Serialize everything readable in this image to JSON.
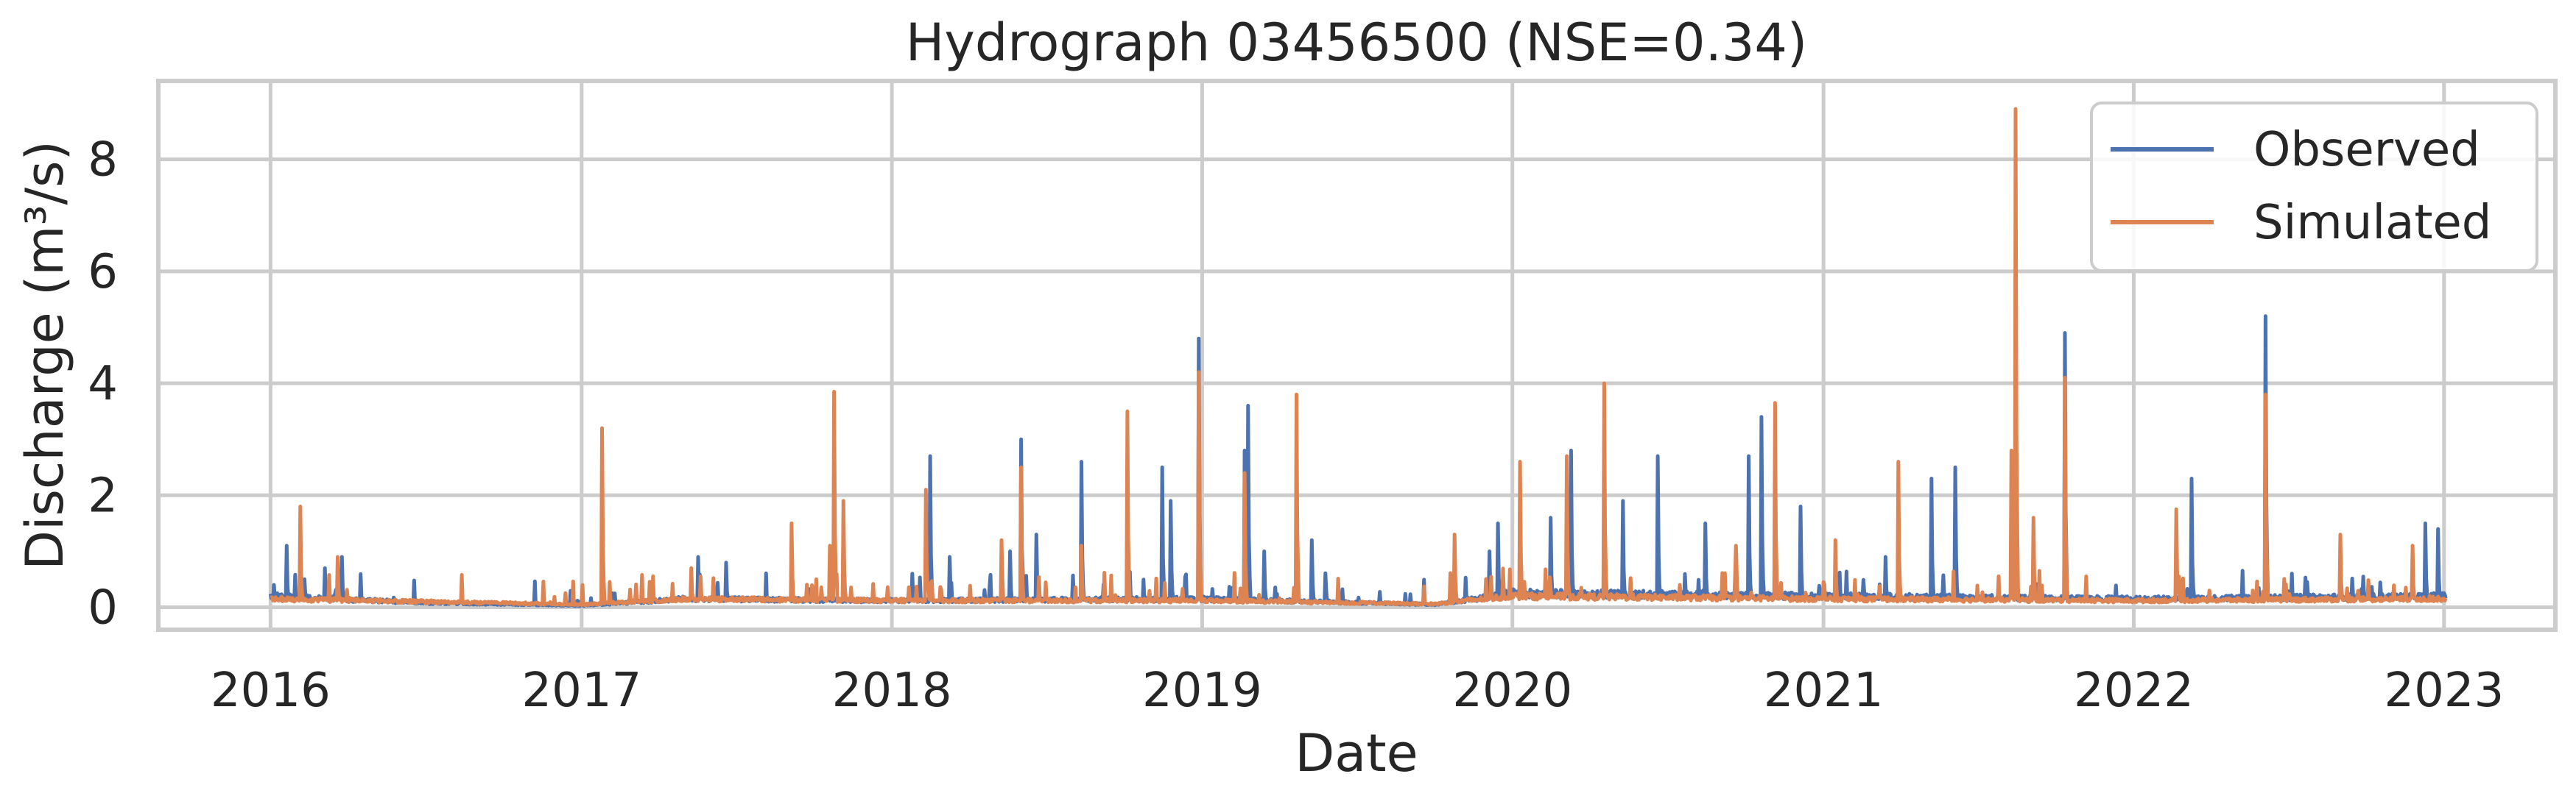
{
  "chart_data": {
    "type": "line",
    "title": "Hydrograph 03456500  (NSE=0.34)",
    "xlabel": "Date",
    "ylabel": "Discharge (m³/s)",
    "x_axis": {
      "kind": "date",
      "range": [
        "2015-08-22",
        "2023-05-12"
      ],
      "ticks": [
        "2016-01-01",
        "2017-01-01",
        "2018-01-01",
        "2019-01-01",
        "2020-01-01",
        "2021-01-01",
        "2022-01-01",
        "2023-01-01"
      ],
      "tick_labels": [
        "2016",
        "2017",
        "2018",
        "2019",
        "2020",
        "2021",
        "2022",
        "2023"
      ]
    },
    "y_axis": {
      "range": [
        -0.4,
        9.4
      ],
      "ticks": [
        0,
        2,
        4,
        6,
        8
      ],
      "tick_labels": [
        "0",
        "2",
        "4",
        "6",
        "8"
      ]
    },
    "grid": true,
    "legend_position": "top-right",
    "series": [
      {
        "name": "Observed",
        "color": "#4c72b0",
        "baseline": 0.1,
        "baseline_dates": [
          "2016-01-01",
          "2016-07-01",
          "2017-01-01",
          "2017-05-01",
          "2018-01-01",
          "2019-01-01",
          "2019-10-01",
          "2020-01-01",
          "2021-01-01",
          "2022-01-01",
          "2023-01-01"
        ],
        "baseline_values": [
          0.2,
          0.08,
          0.03,
          0.15,
          0.12,
          0.15,
          0.05,
          0.25,
          0.2,
          0.15,
          0.2
        ],
        "peaks": [
          {
            "date": "2016-01-05",
            "value": 0.4
          },
          {
            "date": "2016-01-20",
            "value": 1.1
          },
          {
            "date": "2016-02-10",
            "value": 0.5
          },
          {
            "date": "2016-03-05",
            "value": 0.7
          },
          {
            "date": "2016-03-25",
            "value": 0.9
          },
          {
            "date": "2017-05-18",
            "value": 0.9
          },
          {
            "date": "2017-06-20",
            "value": 0.8
          },
          {
            "date": "2017-11-05",
            "value": 1.4
          },
          {
            "date": "2018-01-25",
            "value": 0.6
          },
          {
            "date": "2018-02-15",
            "value": 2.7
          },
          {
            "date": "2018-03-10",
            "value": 0.9
          },
          {
            "date": "2018-05-20",
            "value": 1.0
          },
          {
            "date": "2018-06-02",
            "value": 3.0
          },
          {
            "date": "2018-06-20",
            "value": 1.3
          },
          {
            "date": "2018-08-12",
            "value": 2.6
          },
          {
            "date": "2018-11-15",
            "value": 2.5
          },
          {
            "date": "2018-11-25",
            "value": 1.9
          },
          {
            "date": "2018-12-28",
            "value": 4.8
          },
          {
            "date": "2019-02-20",
            "value": 2.8
          },
          {
            "date": "2019-02-24",
            "value": 3.6
          },
          {
            "date": "2019-03-15",
            "value": 1.0
          },
          {
            "date": "2019-05-10",
            "value": 1.2
          },
          {
            "date": "2019-12-05",
            "value": 1.0
          },
          {
            "date": "2019-12-15",
            "value": 1.5
          },
          {
            "date": "2020-02-15",
            "value": 1.6
          },
          {
            "date": "2020-03-10",
            "value": 2.8
          },
          {
            "date": "2020-05-10",
            "value": 1.9
          },
          {
            "date": "2020-06-20",
            "value": 2.7
          },
          {
            "date": "2020-08-15",
            "value": 1.5
          },
          {
            "date": "2020-10-05",
            "value": 2.7
          },
          {
            "date": "2020-10-20",
            "value": 3.4
          },
          {
            "date": "2020-12-05",
            "value": 1.8
          },
          {
            "date": "2021-03-15",
            "value": 0.9
          },
          {
            "date": "2021-05-08",
            "value": 2.3
          },
          {
            "date": "2021-06-05",
            "value": 2.5
          },
          {
            "date": "2021-10-12",
            "value": 4.9
          },
          {
            "date": "2022-03-10",
            "value": 2.3
          },
          {
            "date": "2022-06-05",
            "value": 5.2
          },
          {
            "date": "2022-12-10",
            "value": 1.5
          },
          {
            "date": "2022-12-25",
            "value": 1.4
          }
        ]
      },
      {
        "name": "Simulated",
        "color": "#dd8452",
        "baseline": 0.1,
        "baseline_dates": [
          "2016-01-01",
          "2016-07-01",
          "2017-01-01",
          "2017-05-01",
          "2018-01-01",
          "2019-01-01",
          "2019-10-01",
          "2020-01-01",
          "2021-01-01",
          "2022-01-01",
          "2023-01-01"
        ],
        "baseline_values": [
          0.15,
          0.1,
          0.05,
          0.15,
          0.12,
          0.12,
          0.06,
          0.2,
          0.15,
          0.12,
          0.15
        ],
        "peaks": [
          {
            "date": "2016-02-05",
            "value": 1.8
          },
          {
            "date": "2016-03-20",
            "value": 0.9
          },
          {
            "date": "2017-01-25",
            "value": 3.2
          },
          {
            "date": "2017-05-10",
            "value": 0.7
          },
          {
            "date": "2017-09-05",
            "value": 1.5
          },
          {
            "date": "2017-10-20",
            "value": 1.1
          },
          {
            "date": "2017-10-25",
            "value": 3.85
          },
          {
            "date": "2017-11-05",
            "value": 1.9
          },
          {
            "date": "2018-02-10",
            "value": 2.1
          },
          {
            "date": "2018-05-10",
            "value": 1.2
          },
          {
            "date": "2018-06-02",
            "value": 2.5
          },
          {
            "date": "2018-08-12",
            "value": 1.1
          },
          {
            "date": "2018-10-05",
            "value": 3.5
          },
          {
            "date": "2018-12-28",
            "value": 4.2
          },
          {
            "date": "2019-02-20",
            "value": 2.4
          },
          {
            "date": "2019-04-22",
            "value": 3.8
          },
          {
            "date": "2019-10-25",
            "value": 1.3
          },
          {
            "date": "2020-01-10",
            "value": 2.6
          },
          {
            "date": "2020-03-05",
            "value": 2.7
          },
          {
            "date": "2020-04-18",
            "value": 4.0
          },
          {
            "date": "2020-09-20",
            "value": 1.1
          },
          {
            "date": "2020-11-05",
            "value": 3.65
          },
          {
            "date": "2021-01-15",
            "value": 1.2
          },
          {
            "date": "2021-03-30",
            "value": 2.6
          },
          {
            "date": "2021-08-10",
            "value": 2.8
          },
          {
            "date": "2021-08-15",
            "value": 8.9
          },
          {
            "date": "2021-09-05",
            "value": 1.6
          },
          {
            "date": "2021-10-12",
            "value": 4.1
          },
          {
            "date": "2022-02-20",
            "value": 1.75
          },
          {
            "date": "2022-06-05",
            "value": 3.8
          },
          {
            "date": "2022-09-01",
            "value": 1.3
          },
          {
            "date": "2022-11-25",
            "value": 1.1
          }
        ]
      }
    ]
  }
}
